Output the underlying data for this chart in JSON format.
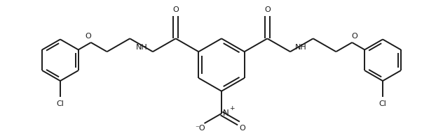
{
  "background_color": "#ffffff",
  "line_color": "#1a1a1a",
  "line_width": 1.4,
  "figsize": [
    6.32,
    1.98
  ],
  "dpi": 100,
  "xlim": [
    0,
    6.32
  ],
  "ylim": [
    0,
    1.98
  ]
}
